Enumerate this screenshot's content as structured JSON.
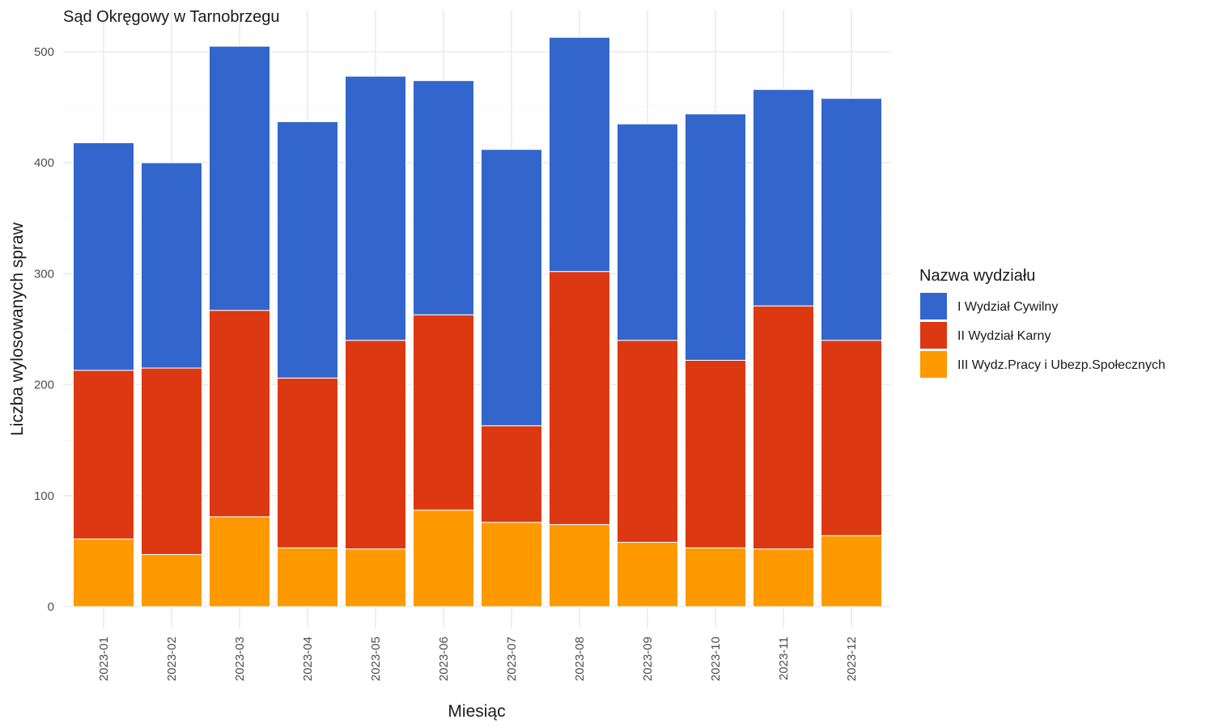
{
  "chart_data": {
    "type": "bar",
    "stacked": true,
    "title": "Sąd Okręgowy w Tarnobrzegu",
    "xlabel": "Miesiąc",
    "ylabel": "Liczba wylosowanych spraw",
    "ylim": [
      0,
      520
    ],
    "yticks": [
      0,
      100,
      200,
      300,
      400,
      500
    ],
    "grid": true,
    "legend_position": "right",
    "legend_title": "Nazwa wydziału",
    "categories": [
      "2023-01",
      "2023-02",
      "2023-03",
      "2023-04",
      "2023-05",
      "2023-06",
      "2023-07",
      "2023-08",
      "2023-09",
      "2023-10",
      "2023-11",
      "2023-12"
    ],
    "series": [
      {
        "name": "III Wydz.Pracy i Ubezp.Społecznych",
        "color": "#ff9900",
        "values": [
          61,
          47,
          81,
          53,
          52,
          87,
          76,
          74,
          58,
          53,
          52,
          64
        ]
      },
      {
        "name": "II Wydział Karny",
        "color": "#dc3912",
        "values": [
          152,
          168,
          186,
          153,
          188,
          176,
          87,
          228,
          182,
          169,
          219,
          176
        ]
      },
      {
        "name": "I Wydział Cywilny",
        "color": "#3366cc",
        "values": [
          205,
          185,
          238,
          231,
          238,
          211,
          249,
          211,
          195,
          222,
          195,
          218
        ]
      }
    ],
    "legend_order": [
      "I Wydział Cywilny",
      "II Wydział Karny",
      "III Wydz.Pracy i Ubezp.Społecznych"
    ]
  }
}
